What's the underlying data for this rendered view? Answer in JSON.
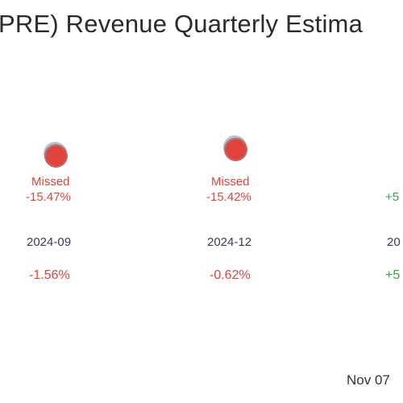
{
  "header": {
    "title": "PRE) Revenue Quarterly Estima"
  },
  "chart_data": {
    "type": "scatter",
    "title": "PRE) Revenue Quarterly Estima",
    "categories": [
      "2024-09",
      "2024-12",
      "20"
    ],
    "points": [
      {
        "period": "2024-09",
        "status": "Missed",
        "surprise": "-15.47%",
        "change": "-1.56%",
        "color": "#e0443b"
      },
      {
        "period": "2024-12",
        "status": "Missed",
        "surprise": "-15.42%",
        "change": "-0.62%",
        "color": "#e0443b"
      },
      {
        "period": "20",
        "status": "",
        "surprise": "+5",
        "change": "+5",
        "color": "#3aa14a"
      }
    ]
  },
  "footer": {
    "date": "Nov 07"
  }
}
